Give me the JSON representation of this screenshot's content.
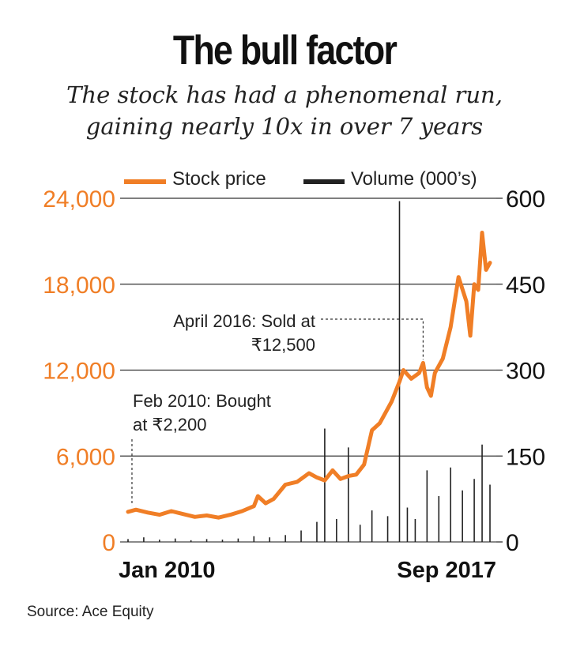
{
  "chart_data": {
    "type": "line",
    "title": "The bull factor",
    "subtitle_lines": [
      "The stock has had a phenomenal run,",
      "gaining nearly 10x in over 7 years"
    ],
    "legend": {
      "placement": "top",
      "items": [
        {
          "label": "Stock price",
          "color": "#f07e26"
        },
        {
          "label": "Volume (000’s)",
          "color": "#222222"
        }
      ]
    },
    "x_axis": {
      "start": "2010-01",
      "end": "2017-09",
      "tick_labels": [
        "Jan 2010",
        "Sep 2017"
      ]
    },
    "y_left": {
      "range": [
        0,
        24000
      ],
      "ticks": [
        0,
        6000,
        12000,
        18000,
        24000
      ],
      "tick_labels": [
        "0",
        "6,000",
        "12,000",
        "18,000",
        "24,000"
      ],
      "color": "#f07e26"
    },
    "y_right": {
      "range": [
        0,
        600
      ],
      "ticks": [
        0,
        150,
        300,
        450,
        600
      ],
      "tick_labels": [
        "0",
        "150",
        "300",
        "450",
        "600"
      ],
      "color": "#111111"
    },
    "grid": true,
    "series": [
      {
        "name": "Stock price",
        "axis": "left",
        "color": "#f07e26",
        "points": [
          [
            "2010-01",
            2100
          ],
          [
            "2010-03",
            2250
          ],
          [
            "2010-06",
            2050
          ],
          [
            "2010-09",
            1900
          ],
          [
            "2010-12",
            2150
          ],
          [
            "2011-03",
            1950
          ],
          [
            "2011-06",
            1750
          ],
          [
            "2011-09",
            1850
          ],
          [
            "2011-12",
            1700
          ],
          [
            "2012-03",
            1900
          ],
          [
            "2012-06",
            2150
          ],
          [
            "2012-09",
            2500
          ],
          [
            "2012-10",
            3200
          ],
          [
            "2012-12",
            2700
          ],
          [
            "2013-02",
            3000
          ],
          [
            "2013-05",
            4000
          ],
          [
            "2013-08",
            4200
          ],
          [
            "2013-11",
            4800
          ],
          [
            "2014-01",
            4500
          ],
          [
            "2014-03",
            4300
          ],
          [
            "2014-05",
            5000
          ],
          [
            "2014-07",
            4400
          ],
          [
            "2014-09",
            4600
          ],
          [
            "2014-11",
            4700
          ],
          [
            "2015-01",
            5400
          ],
          [
            "2015-03",
            7800
          ],
          [
            "2015-05",
            8300
          ],
          [
            "2015-08",
            9800
          ],
          [
            "2015-10",
            11200
          ],
          [
            "2015-11",
            12000
          ],
          [
            "2016-01",
            11400
          ],
          [
            "2016-03",
            11800
          ],
          [
            "2016-04",
            12500
          ],
          [
            "2016-05",
            10800
          ],
          [
            "2016-06",
            10200
          ],
          [
            "2016-07",
            11800
          ],
          [
            "2016-09",
            12800
          ],
          [
            "2016-11",
            15000
          ],
          [
            "2017-01",
            18500
          ],
          [
            "2017-03",
            16800
          ],
          [
            "2017-04",
            14400
          ],
          [
            "2017-05",
            18000
          ],
          [
            "2017-06",
            17600
          ],
          [
            "2017-07",
            21600
          ],
          [
            "2017-08",
            19000
          ],
          [
            "2017-09",
            19500
          ]
        ]
      },
      {
        "name": "Volume (000’s)",
        "axis": "right",
        "color": "#222222",
        "type": "bar",
        "points": [
          [
            "2010-01",
            5
          ],
          [
            "2010-05",
            8
          ],
          [
            "2010-09",
            4
          ],
          [
            "2011-01",
            6
          ],
          [
            "2011-05",
            3
          ],
          [
            "2011-09",
            5
          ],
          [
            "2012-01",
            4
          ],
          [
            "2012-05",
            6
          ],
          [
            "2012-09",
            10
          ],
          [
            "2013-01",
            8
          ],
          [
            "2013-05",
            12
          ],
          [
            "2013-09",
            20
          ],
          [
            "2014-01",
            35
          ],
          [
            "2014-03",
            198
          ],
          [
            "2014-06",
            40
          ],
          [
            "2014-09",
            165
          ],
          [
            "2014-12",
            30
          ],
          [
            "2015-03",
            55
          ],
          [
            "2015-07",
            45
          ],
          [
            "2015-10",
            595
          ],
          [
            "2015-12",
            60
          ],
          [
            "2016-02",
            40
          ],
          [
            "2016-05",
            125
          ],
          [
            "2016-08",
            80
          ],
          [
            "2016-11",
            130
          ],
          [
            "2017-02",
            90
          ],
          [
            "2017-05",
            110
          ],
          [
            "2017-07",
            170
          ],
          [
            "2017-09",
            100
          ]
        ]
      }
    ],
    "annotations": [
      {
        "lines": [
          "Feb 2010: Bought",
          "at ₹2,200"
        ],
        "date": "2010-02",
        "value": 2200
      },
      {
        "lines": [
          "April 2016: Sold at",
          "₹12,500"
        ],
        "date": "2016-04",
        "value": 12500
      }
    ],
    "source": "Source: Ace Equity"
  }
}
